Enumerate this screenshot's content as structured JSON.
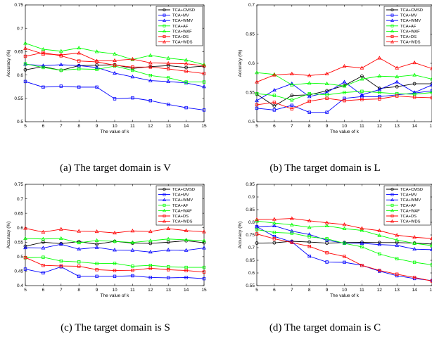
{
  "legend": [
    "TCA+CMSD",
    "TCA+MV",
    "TCA+WMV",
    "TCA+AF",
    "TCA+WAF",
    "TCA+DS",
    "TCA+WDS"
  ],
  "series_styles": [
    {
      "color": "#000000",
      "marker": "circle"
    },
    {
      "color": "#0000ff",
      "marker": "square"
    },
    {
      "color": "#0000ff",
      "marker": "triangle"
    },
    {
      "color": "#00ff00",
      "marker": "square"
    },
    {
      "color": "#00ff00",
      "marker": "triangle"
    },
    {
      "color": "#ff0000",
      "marker": "square"
    },
    {
      "color": "#ff0000",
      "marker": "triangle"
    }
  ],
  "chart_data": [
    {
      "type": "line",
      "caption": "(a) The target domain is V",
      "xlabel": "The value of k",
      "ylabel": "Accuracy (%)",
      "x": [
        5,
        6,
        7,
        8,
        9,
        10,
        11,
        12,
        13,
        14,
        15
      ],
      "xlim": [
        5,
        15
      ],
      "ylim": [
        0.5,
        0.75
      ],
      "yticks": [
        "0.5",
        "0.55",
        "0.6",
        "0.65",
        "0.7",
        "0.75"
      ],
      "ytick_values": [
        0.5,
        0.55,
        0.6,
        0.65,
        0.7,
        0.75
      ],
      "legend_position": "top-right",
      "series": [
        {
          "name": "TCA+CMSD",
          "values": [
            0.611,
            0.618,
            0.61,
            0.62,
            0.621,
            0.622,
            0.614,
            0.618,
            0.62,
            0.616,
            0.619
          ]
        },
        {
          "name": "TCA+MV",
          "values": [
            0.586,
            0.574,
            0.576,
            0.574,
            0.574,
            0.549,
            0.551,
            0.545,
            0.537,
            0.53,
            0.525
          ]
        },
        {
          "name": "TCA+WMV",
          "values": [
            0.623,
            0.62,
            0.622,
            0.62,
            0.616,
            0.604,
            0.596,
            0.588,
            0.586,
            0.583,
            0.575
          ]
        },
        {
          "name": "TCA+AF",
          "values": [
            0.624,
            0.616,
            0.61,
            0.613,
            0.612,
            0.619,
            0.61,
            0.599,
            0.594,
            0.585,
            0.585
          ]
        },
        {
          "name": "TCA+WAF",
          "values": [
            0.668,
            0.655,
            0.651,
            0.658,
            0.65,
            0.645,
            0.633,
            0.642,
            0.636,
            0.632,
            0.622
          ]
        },
        {
          "name": "TCA+DS",
          "values": [
            0.64,
            0.648,
            0.641,
            0.63,
            0.628,
            0.621,
            0.617,
            0.617,
            0.613,
            0.608,
            0.603
          ]
        },
        {
          "name": "TCA+WDS",
          "values": [
            0.657,
            0.645,
            0.643,
            0.647,
            0.63,
            0.631,
            0.634,
            0.626,
            0.625,
            0.624,
            0.62
          ]
        }
      ]
    },
    {
      "type": "line",
      "caption": "(b) The target domain is L",
      "xlabel": "The value of k",
      "ylabel": "Accuracy (%)",
      "x": [
        5,
        6,
        7,
        8,
        9,
        10,
        11,
        12,
        13,
        14,
        15
      ],
      "xlim": [
        5,
        15
      ],
      "ylim": [
        0.5,
        0.7
      ],
      "yticks": [
        "0.5",
        "0.55",
        "0.6",
        "0.65",
        "0.7"
      ],
      "ytick_values": [
        0.5,
        0.55,
        0.6,
        0.65,
        0.7
      ],
      "legend_position": "top-right",
      "series": [
        {
          "name": "TCA+CMSD",
          "values": [
            0.547,
            0.527,
            0.545,
            0.546,
            0.553,
            0.562,
            0.578,
            0.557,
            0.56,
            0.565,
            0.565
          ]
        },
        {
          "name": "TCA+MV",
          "values": [
            0.523,
            0.52,
            0.528,
            0.516,
            0.516,
            0.54,
            0.543,
            0.543,
            0.546,
            0.549,
            0.553
          ]
        },
        {
          "name": "TCA+WMV",
          "values": [
            0.536,
            0.554,
            0.565,
            0.543,
            0.55,
            0.568,
            0.546,
            0.555,
            0.568,
            0.55,
            0.563
          ]
        },
        {
          "name": "TCA+AF",
          "values": [
            0.548,
            0.545,
            0.537,
            0.548,
            0.546,
            0.55,
            0.552,
            0.55,
            0.548,
            0.547,
            0.55
          ]
        },
        {
          "name": "TCA+WAF",
          "values": [
            0.584,
            0.581,
            0.563,
            0.566,
            0.565,
            0.561,
            0.573,
            0.578,
            0.577,
            0.58,
            0.573
          ]
        },
        {
          "name": "TCA+DS",
          "values": [
            0.529,
            0.533,
            0.522,
            0.535,
            0.54,
            0.536,
            0.538,
            0.539,
            0.544,
            0.542,
            0.541
          ]
        },
        {
          "name": "TCA+WDS",
          "values": [
            0.568,
            0.58,
            0.582,
            0.579,
            0.582,
            0.595,
            0.592,
            0.609,
            0.592,
            0.601,
            0.591
          ]
        }
      ]
    },
    {
      "type": "line",
      "caption": "(c) The target domain is S",
      "xlabel": "The value of k",
      "ylabel": "Accuracy (%)",
      "x": [
        5,
        6,
        7,
        8,
        9,
        10,
        11,
        12,
        13,
        14,
        15
      ],
      "xlim": [
        5,
        15
      ],
      "ylim": [
        0.4,
        0.75
      ],
      "yticks": [
        "0.4",
        "0.45",
        "0.5",
        "0.55",
        "0.6",
        "0.65",
        "0.7",
        "0.75"
      ],
      "ytick_values": [
        0.4,
        0.45,
        0.5,
        0.55,
        0.6,
        0.65,
        0.7,
        0.75
      ],
      "legend_position": "top-right",
      "series": [
        {
          "name": "TCA+CMSD",
          "values": [
            0.536,
            0.55,
            0.545,
            0.552,
            0.543,
            0.553,
            0.547,
            0.546,
            0.55,
            0.555,
            0.548
          ]
        },
        {
          "name": "TCA+MV",
          "values": [
            0.457,
            0.444,
            0.465,
            0.432,
            0.432,
            0.432,
            0.434,
            0.428,
            0.427,
            0.428,
            0.424
          ]
        },
        {
          "name": "TCA+WMV",
          "values": [
            0.531,
            0.53,
            0.543,
            0.526,
            0.532,
            0.523,
            0.522,
            0.516,
            0.523,
            0.522,
            0.53
          ]
        },
        {
          "name": "TCA+AF",
          "values": [
            0.496,
            0.498,
            0.485,
            0.482,
            0.476,
            0.477,
            0.467,
            0.47,
            0.465,
            0.463,
            0.463
          ]
        },
        {
          "name": "TCA+WAF",
          "values": [
            0.563,
            0.561,
            0.563,
            0.548,
            0.556,
            0.553,
            0.549,
            0.555,
            0.561,
            0.558,
            0.555
          ]
        },
        {
          "name": "TCA+DS",
          "values": [
            0.497,
            0.47,
            0.468,
            0.467,
            0.455,
            0.452,
            0.453,
            0.46,
            0.455,
            0.452,
            0.447
          ]
        },
        {
          "name": "TCA+WDS",
          "values": [
            0.598,
            0.585,
            0.595,
            0.588,
            0.587,
            0.582,
            0.589,
            0.587,
            0.597,
            0.59,
            0.586
          ]
        }
      ]
    },
    {
      "type": "line",
      "caption": "(d) The target domain is C",
      "xlabel": "The value of k",
      "ylabel": "Accuracy (%)",
      "x": [
        5,
        6,
        7,
        8,
        9,
        10,
        11,
        12,
        13,
        14,
        15
      ],
      "xlim": [
        5,
        15
      ],
      "ylim": [
        0.55,
        0.95
      ],
      "yticks": [
        "0.55",
        "0.6",
        "0.65",
        "0.7",
        "0.75",
        "0.8",
        "0.85",
        "0.9",
        "0.95"
      ],
      "ytick_values": [
        0.55,
        0.6,
        0.65,
        0.7,
        0.75,
        0.8,
        0.85,
        0.9,
        0.95
      ],
      "legend_position": "top-right",
      "series": [
        {
          "name": "TCA+CMSD",
          "values": [
            0.718,
            0.719,
            0.725,
            0.722,
            0.718,
            0.72,
            0.721,
            0.72,
            0.72,
            0.718,
            0.714
          ]
        },
        {
          "name": "TCA+MV",
          "values": [
            0.783,
            0.744,
            0.723,
            0.666,
            0.643,
            0.642,
            0.63,
            0.607,
            0.589,
            0.578,
            0.57
          ]
        },
        {
          "name": "TCA+WMV",
          "values": [
            0.782,
            0.786,
            0.765,
            0.752,
            0.729,
            0.718,
            0.717,
            0.712,
            0.709,
            0.694,
            0.692
          ]
        },
        {
          "name": "TCA+AF",
          "values": [
            0.771,
            0.76,
            0.757,
            0.743,
            0.735,
            0.717,
            0.703,
            0.675,
            0.656,
            0.642,
            0.632
          ]
        },
        {
          "name": "TCA+WAF",
          "values": [
            0.805,
            0.797,
            0.79,
            0.78,
            0.786,
            0.775,
            0.768,
            0.748,
            0.73,
            0.717,
            0.708
          ]
        },
        {
          "name": "TCA+DS",
          "values": [
            0.754,
            0.735,
            0.72,
            0.705,
            0.68,
            0.665,
            0.63,
            0.61,
            0.595,
            0.582,
            0.568
          ]
        },
        {
          "name": "TCA+WDS",
          "values": [
            0.811,
            0.812,
            0.815,
            0.806,
            0.798,
            0.791,
            0.776,
            0.767,
            0.749,
            0.741,
            0.736
          ]
        }
      ]
    }
  ]
}
